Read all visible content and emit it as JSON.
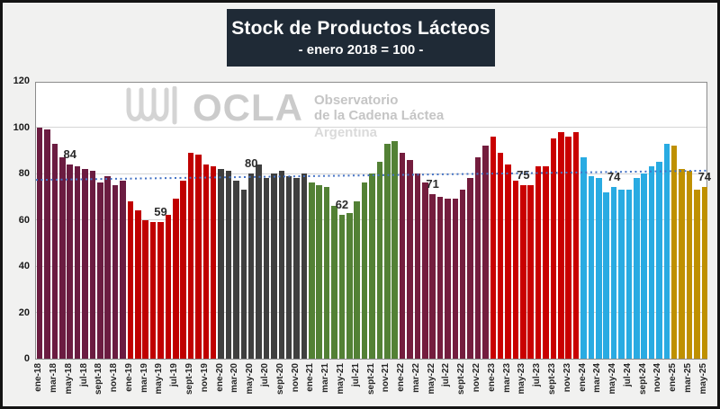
{
  "title": "Stock de Productos Lácteos",
  "subtitle": "- enero 2018 = 100 -",
  "watermark": {
    "logo": "OCLA",
    "line1": "Observatorio",
    "line2": "de la Cadena Láctea",
    "line3": "Argentina"
  },
  "chart_data": {
    "type": "bar",
    "title": "Stock de Productos Lácteos",
    "subtitle": "- enero 2018 = 100 -",
    "ylim": [
      0,
      120
    ],
    "yticks": [
      0,
      20,
      40,
      60,
      80,
      100,
      120
    ],
    "grid": "horizontal",
    "x_tick_step": 2,
    "x_tick_labels": [
      "ene-18",
      "mar-18",
      "may-18",
      "jul-18",
      "sept-18",
      "nov-18",
      "ene-19",
      "mar-19",
      "may-19",
      "jul-19",
      "sept-19",
      "nov-19",
      "ene-20",
      "mar-20",
      "may-20",
      "jul-20",
      "sept-20",
      "nov-20",
      "ene-21",
      "mar-21",
      "may-21",
      "jul-21",
      "sept-21",
      "nov-21",
      "ene-22",
      "mar-22",
      "may-22",
      "jul-22",
      "sept-22",
      "nov-22",
      "ene-23",
      "mar-23",
      "may-23",
      "jul-23",
      "sept-23",
      "nov-23",
      "ene-24",
      "mar-24",
      "may-24",
      "jul-24",
      "sept-24",
      "nov-24",
      "ene-25",
      "mar-25",
      "may-25"
    ],
    "categories": [
      "ene-18",
      "feb-18",
      "mar-18",
      "abr-18",
      "may-18",
      "jun-18",
      "jul-18",
      "ago-18",
      "sept-18",
      "oct-18",
      "nov-18",
      "dic-18",
      "ene-19",
      "feb-19",
      "mar-19",
      "abr-19",
      "may-19",
      "jun-19",
      "jul-19",
      "ago-19",
      "sept-19",
      "oct-19",
      "nov-19",
      "dic-19",
      "ene-20",
      "feb-20",
      "mar-20",
      "abr-20",
      "may-20",
      "jun-20",
      "jul-20",
      "ago-20",
      "sept-20",
      "oct-20",
      "nov-20",
      "dic-20",
      "ene-21",
      "feb-21",
      "mar-21",
      "abr-21",
      "may-21",
      "jun-21",
      "jul-21",
      "ago-21",
      "sept-21",
      "oct-21",
      "nov-21",
      "dic-21",
      "ene-22",
      "feb-22",
      "mar-22",
      "abr-22",
      "may-22",
      "jun-22",
      "jul-22",
      "ago-22",
      "sept-22",
      "oct-22",
      "nov-22",
      "dic-22",
      "ene-23",
      "feb-23",
      "mar-23",
      "abr-23",
      "may-23",
      "jun-23",
      "jul-23",
      "ago-23",
      "sept-23",
      "oct-23",
      "nov-23",
      "dic-23",
      "ene-24",
      "feb-24",
      "mar-24",
      "abr-24",
      "may-24",
      "jun-24",
      "jul-24",
      "ago-24",
      "sept-24",
      "oct-24",
      "nov-24",
      "dic-24",
      "ene-25",
      "feb-25",
      "mar-25",
      "abr-25",
      "may-25"
    ],
    "values": [
      100,
      99,
      93,
      87,
      84,
      83,
      82,
      81,
      76,
      79,
      75,
      77,
      68,
      64,
      60,
      59,
      59,
      62,
      69,
      77,
      89,
      88,
      84,
      83,
      82,
      81,
      77,
      73,
      80,
      84,
      78,
      80,
      81,
      79,
      78,
      80,
      76,
      75,
      74,
      66,
      62,
      63,
      68,
      76,
      80,
      85,
      93,
      94,
      89,
      86,
      80,
      76,
      71,
      70,
      69,
      69,
      73,
      78,
      87,
      92,
      96,
      89,
      84,
      77,
      75,
      75,
      83,
      83,
      95,
      98,
      96,
      98,
      87,
      79,
      78,
      72,
      74,
      73,
      73,
      78,
      80,
      83,
      85,
      93,
      92,
      82,
      81,
      73,
      74
    ],
    "year_colors": {
      "2018": "#6b1c41",
      "2019": "#c00000",
      "2020": "#3f3f3f",
      "2021": "#538135",
      "2022": "#741d3e",
      "2023": "#c90000",
      "2024": "#29abe2",
      "2025": "#bf9000"
    },
    "data_labels": [
      {
        "month": "may-18",
        "value": 84
      },
      {
        "month": "may-19",
        "value": 59
      },
      {
        "month": "may-20",
        "value": 80
      },
      {
        "month": "may-21",
        "value": 62
      },
      {
        "month": "may-22",
        "value": 71
      },
      {
        "month": "may-23",
        "value": 75
      },
      {
        "month": "may-24",
        "value": 74
      },
      {
        "month": "may-25",
        "value": 74
      }
    ],
    "trend_line": {
      "style": "dotted",
      "color": "#4472c4",
      "start_value": 78,
      "end_value": 82
    },
    "legend": "none"
  }
}
